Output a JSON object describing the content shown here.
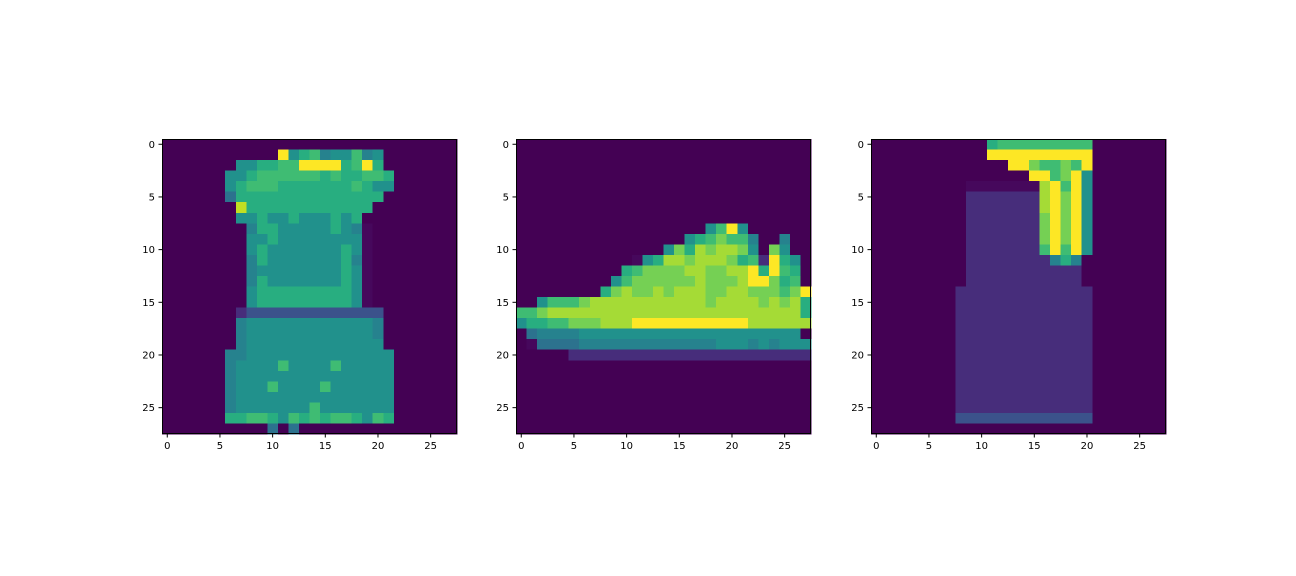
{
  "chart_data": [
    {
      "type": "heatmap",
      "title": "",
      "xlabel": "",
      "ylabel": "",
      "rows": 28,
      "cols": 28,
      "xlim": [
        -0.5,
        27.5
      ],
      "ylim": [
        27.5,
        -0.5
      ],
      "xticks": [
        0,
        5,
        10,
        15,
        20,
        25
      ],
      "yticks": [
        0,
        5,
        10,
        15,
        20,
        25
      ],
      "colormap": "viridis",
      "value_range": [
        0,
        1
      ],
      "pixels": [
        "............................",
        "...........yEFGDEEGDE.......",
        ".......EEFFGGyyyyFGyF.......",
        "......EEFGGGGGGFGFFGGF......",
        "......EFGGGFFFFFFFGFEE......",
        "......CFFFFFFFFFFFFFF.......",
        ".......gFFFFFFFFFFFF........",
        ".......EEFEEFEEEFEF.........",
        "........DFFEEEEEFEDa........",
        "........EEFEEEEEEEEa........",
        "........EFEEEEEEEFEa........",
        "........DFEEEEEEEFDa........",
        "........DEEEEEEEEFEa........",
        "........DFEEEEEEEFEa........",
        "........EFFFFFFFFFEa........",
        "........EFFFFFFFFFEa........",
        ".......bccccccccccccc.......",
        ".......DEEEEEEEEEEEED.......",
        ".......DEEEEEEEEEEEED.......",
        ".......DEEEEEEEEEEEEE.......",
        "......DDEEEEEEEEEEEEEE......",
        "......DEEEEGEEEEGEEEEE......",
        "......DEEEEEEEEEEEEEEE......",
        "......DEEEGEEEEGEEEEEE......",
        "......DEEEEEEEEEEEEEEE......",
        "......DEEEEEEEGEEEEEEE......",
        "......FFGGFEGFGFGGFEGF......",
        "..........C.C..............."
      ]
    },
    {
      "type": "heatmap",
      "title": "",
      "xlabel": "",
      "ylabel": "",
      "rows": 28,
      "cols": 28,
      "xlim": [
        -0.5,
        27.5
      ],
      "ylim": [
        27.5,
        -0.5
      ],
      "xticks": [
        0,
        5,
        10,
        15,
        20,
        25
      ],
      "yticks": [
        0,
        5,
        10,
        15,
        20,
        25
      ],
      "colormap": "viridis",
      "value_range": [
        0,
        1
      ],
      "pixels": [
        "............................",
        "............................",
        "............................",
        "............................",
        "............................",
        "............................",
        "............................",
        "............................",
        "..................EGyE......",
        "................EFGHGGD..D...",
        "..............EHFIHIIHE.HE..",
        "...........aEFIIHIIIHFGbyFE.",
        "..........FGHHHHIIHHIIyFyGF.",
        ".........EGHHHHHHIHHHIyyHFG.",
        "........FHIHHIHIIIHHIIHHHGHy",
        "..EGGGHIIIIIIIIIIIHIIIIHIHIF",
        "GGHIIIIIIIIIIIIIIIIIIIIIIIIF",
        "EFFGGHHHIIIyyyyyyyyyyyIIIIII",
        ".CDDDDEEEEEEEEEEEEEEEEEEEEE.",
        ".aCCCCDDDDDDDDDDDDDEEEDEDEEE",
        ".....bbbbbbbbbbbbbbbbbbbbbbb",
        "............................",
        "............................",
        "............................",
        "............................",
        "............................",
        "............................",
        "............................"
      ]
    },
    {
      "type": "heatmap",
      "title": "",
      "xlabel": "",
      "ylabel": "",
      "rows": 28,
      "cols": 28,
      "xlim": [
        -0.5,
        27.5
      ],
      "ylim": [
        27.5,
        -0.5
      ],
      "xticks": [
        0,
        5,
        10,
        15,
        20,
        25
      ],
      "yticks": [
        0,
        5,
        10,
        15,
        20,
        25
      ],
      "colormap": "viridis",
      "value_range": [
        0,
        1
      ],
      "pixels": [
        "...........FGGGGGGGGG.......",
        "...........yyyyyyyyyy.......",
        ".............yyHGGHGy.......",
        "...............yyGHyE.......",
        ".........aaaaaaaIyGyE.......",
        ".........bbbbbbbIyHyE.......",
        ".........bbbbbbbIyHyE.......",
        ".........bbbbbbbHyHyE.......",
        ".........bbbbbbbHyHyE.......",
        ".........bbbbbbbHyHyE.......",
        ".........bbbbbbbGyGyE.......",
        ".........bbbbbbbbDFD........",
        ".........bbbbbbbbbbb........",
        ".........bbbbbbbbbbb........",
        "........bbbbbbbbbbbbb.......",
        "........bbbbbbbbbbbbb.......",
        "........bbbbbbbbbbbbb.......",
        "........bbbbbbbbbbbbb.......",
        "........bbbbbbbbbbbbb.......",
        "........bbbbbbbbbbbbb.......",
        "........bbbbbbbbbbbbb.......",
        "........bbbbbbbbbbbbb.......",
        "........bbbbbbbbbbbbb.......",
        "........bbbbbbbbbbbbb.......",
        "........bbbbbbbbbbbbb.......",
        "........bbbbbbbbbbbbb.......",
        "........ccccccccccccc.......",
        "............................"
      ]
    }
  ],
  "colors": {
    "palette_key": {
      ".": "#440154",
      "a": "#46085c",
      "b": "#472d7b",
      "c": "#3b528b",
      "C": "#2c728e",
      "D": "#26828e",
      "E": "#21918c",
      "F": "#28ae80",
      "G": "#3fbc73",
      "H": "#75d054",
      "I": "#a5db36",
      "g": "#c2df23",
      "y": "#fde725"
    },
    "frame": "#000000",
    "background": "#ffffff"
  }
}
